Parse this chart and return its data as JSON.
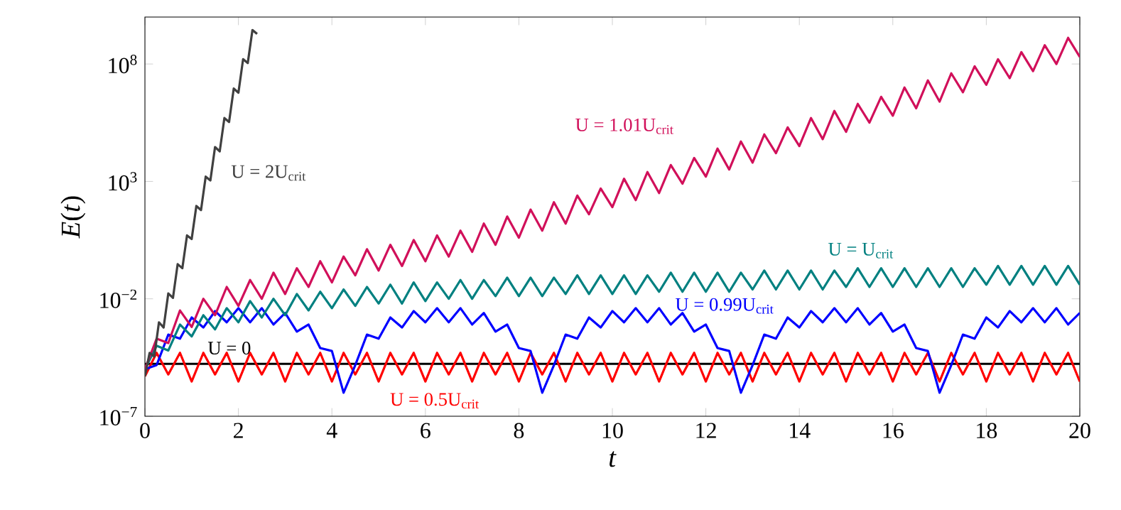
{
  "chart_data": {
    "type": "line",
    "xlabel": "*t*",
    "ylabel": "*E*(*t*)",
    "log": "y",
    "xlim": [
      0,
      20
    ],
    "ylim": [
      1e-07,
      10000000000.0
    ],
    "xticks": [
      0,
      2,
      4,
      6,
      8,
      10,
      12,
      14,
      16,
      18,
      20
    ],
    "yticks": [
      {
        "value": 1e-07,
        "label": "10$^{−7}$"
      },
      {
        "value": 0.01,
        "label": "10$^{−2}$"
      },
      {
        "value": 1000.0,
        "label": "10$^{3}$"
      },
      {
        "value": 100000000.0,
        "label": "10$^{8}$"
      }
    ],
    "x": [
      0,
      0.25,
      0.5,
      0.75,
      1,
      1.25,
      1.5,
      1.75,
      2,
      2.25,
      2.5,
      2.75,
      3,
      3.25,
      3.5,
      3.75,
      4,
      4.25,
      4.5,
      4.75,
      5,
      5.25,
      5.5,
      5.75,
      6,
      6.25,
      6.5,
      6.75,
      7,
      7.25,
      7.5,
      7.75,
      8,
      8.25,
      8.5,
      8.75,
      9,
      9.25,
      9.5,
      9.75,
      10,
      10.25,
      10.5,
      10.75,
      11,
      11.25,
      11.5,
      11.75,
      12,
      12.25,
      12.5,
      12.75,
      13,
      13.25,
      13.5,
      13.75,
      14,
      14.25,
      14.5,
      14.75,
      15,
      15.25,
      15.5,
      15.75,
      16,
      16.25,
      16.5,
      16.75,
      17,
      17.25,
      17.5,
      17.75,
      18,
      18.25,
      18.5,
      18.75,
      19,
      19.25,
      19.5,
      19.75,
      20
    ],
    "series": [
      {
        "name": "U = 0",
        "color": "#000000",
        "x": [
          0,
          20
        ],
        "values": [
          1.7e-05,
          1.7e-05
        ]
      },
      {
        "name": "U = 0.5U$_{crit}$",
        "color": "#ff0000",
        "values": [
          5e-06,
          5e-05,
          6e-06,
          5e-05,
          3e-06,
          5e-05,
          6e-06,
          5e-05,
          3e-06,
          5e-05,
          6e-06,
          5e-05,
          3e-06,
          5e-05,
          6e-06,
          5e-05,
          3e-06,
          5e-05,
          6e-06,
          5e-05,
          3e-06,
          5e-05,
          6e-06,
          5e-05,
          3e-06,
          5e-05,
          6e-06,
          5e-05,
          3e-06,
          5e-05,
          6e-06,
          5e-05,
          3e-06,
          5e-05,
          6e-06,
          5e-05,
          3e-06,
          5e-05,
          6e-06,
          5e-05,
          3e-06,
          5e-05,
          6e-06,
          5e-05,
          3e-06,
          5e-05,
          6e-06,
          5e-05,
          3e-06,
          5e-05,
          6e-06,
          5e-05,
          3e-06,
          5e-05,
          6e-06,
          5e-05,
          3e-06,
          5e-05,
          6e-06,
          5e-05,
          3e-06,
          5e-05,
          6e-06,
          5e-05,
          3e-06,
          5e-05,
          6e-06,
          5e-05,
          3e-06,
          5e-05,
          6e-06,
          5e-05,
          3e-06,
          5e-05,
          6e-06,
          5e-05,
          3e-06,
          5e-05,
          6e-06,
          5e-05,
          3e-06
        ]
      },
      {
        "name": "U = 0.99U$_{crit}$",
        "color": "#0000ff",
        "values": [
          1e-05,
          1.5e-05,
          0.0003,
          0.0002,
          0.0016,
          0.0006,
          0.003,
          0.001,
          0.004,
          0.001,
          0.004,
          0.0008,
          0.0025,
          0.0004,
          0.0008,
          8e-05,
          6e-05,
          1e-06,
          1.5e-05,
          0.0003,
          0.0002,
          0.0016,
          0.0006,
          0.003,
          0.001,
          0.004,
          0.001,
          0.004,
          0.0008,
          0.0025,
          0.0004,
          0.0008,
          8e-05,
          6e-05,
          1e-06,
          1.5e-05,
          0.0003,
          0.0002,
          0.0016,
          0.0006,
          0.003,
          0.001,
          0.004,
          0.001,
          0.004,
          0.0008,
          0.0025,
          0.0004,
          0.0008,
          8e-05,
          6e-05,
          1e-06,
          1.5e-05,
          0.0003,
          0.0002,
          0.0016,
          0.0006,
          0.003,
          0.001,
          0.004,
          0.001,
          0.004,
          0.0008,
          0.0025,
          0.0004,
          0.0008,
          8e-05,
          6e-05,
          1e-06,
          1.5e-05,
          0.0003,
          0.0002,
          0.0016,
          0.0006,
          0.003,
          0.001,
          0.004,
          0.001,
          0.004,
          0.0008,
          0.0025
        ]
      },
      {
        "name": "U = U$_{crit}$",
        "color": "#008080",
        "values": [
          1e-05,
          0.0001,
          6.3e-05,
          0.0008,
          0.00025,
          0.002,
          0.0005,
          0.004,
          0.001,
          0.008,
          0.0016,
          0.01,
          0.002,
          0.016,
          0.0032,
          0.02,
          0.004,
          0.025,
          0.005,
          0.032,
          0.0063,
          0.04,
          0.0063,
          0.05,
          0.008,
          0.05,
          0.01,
          0.063,
          0.01,
          0.063,
          0.013,
          0.08,
          0.013,
          0.08,
          0.013,
          0.08,
          0.016,
          0.1,
          0.016,
          0.1,
          0.016,
          0.1,
          0.016,
          0.1,
          0.02,
          0.13,
          0.02,
          0.13,
          0.02,
          0.13,
          0.02,
          0.13,
          0.025,
          0.16,
          0.025,
          0.16,
          0.025,
          0.16,
          0.025,
          0.16,
          0.032,
          0.2,
          0.032,
          0.2,
          0.032,
          0.2,
          0.032,
          0.2,
          0.032,
          0.2,
          0.032,
          0.2,
          0.04,
          0.25,
          0.04,
          0.25,
          0.04,
          0.25,
          0.04,
          0.25,
          0.04
        ]
      },
      {
        "name": "U = 1.01U$_{crit}$",
        "color": "#d1105a",
        "values": [
          1e-05,
          0.0002,
          0.00013,
          0.0032,
          0.00063,
          0.01,
          0.002,
          0.032,
          0.005,
          0.063,
          0.01,
          0.13,
          0.016,
          0.2,
          0.032,
          0.4,
          0.05,
          0.63,
          0.1,
          1.3,
          0.16,
          2,
          0.25,
          3.2,
          0.4,
          5,
          0.63,
          8,
          1,
          16,
          2,
          32,
          4,
          63,
          8,
          130,
          16,
          250,
          40,
          500,
          80,
          1300,
          160,
          2500,
          320,
          5000,
          800,
          10000.0,
          1600,
          25000.0,
          3200,
          50000.0,
          6300,
          100000.0,
          16000.0,
          200000.0,
          32000.0,
          500000.0,
          63000.0,
          1000000.0,
          130000.0,
          2000000.0,
          320000.0,
          4000000.0,
          630000.0,
          10000000.0,
          1300000.0,
          20000000.0,
          2500000.0,
          40000000.0,
          6300000.0,
          80000000.0,
          13000000.0,
          160000000.0,
          25000000.0,
          320000000.0,
          50000000.0,
          630000000.0,
          100000000.0,
          1300000000.0,
          200000000.0
        ]
      },
      {
        "name": "U = 2U$_{crit}$",
        "color": "#404040",
        "x": [
          0,
          0.1,
          0.2,
          0.3,
          0.4,
          0.5,
          0.6,
          0.7,
          0.8,
          0.9,
          1,
          1.1,
          1.2,
          1.3,
          1.4,
          1.5,
          1.6,
          1.7,
          1.8,
          1.9,
          2,
          2.1,
          2.2,
          2.3,
          2.4
        ],
        "values": [
          5e-06,
          5e-05,
          3.5e-05,
          0.001,
          0.0006,
          0.017,
          0.011,
          0.3,
          0.2,
          5,
          3.5,
          90,
          60,
          1600,
          1100,
          29000.0,
          19000.0,
          500000.0,
          340000.0,
          9000000.0,
          6000000.0,
          160000000.0,
          110000000.0,
          2800000000.0,
          1900000000.0
        ]
      }
    ]
  }
}
